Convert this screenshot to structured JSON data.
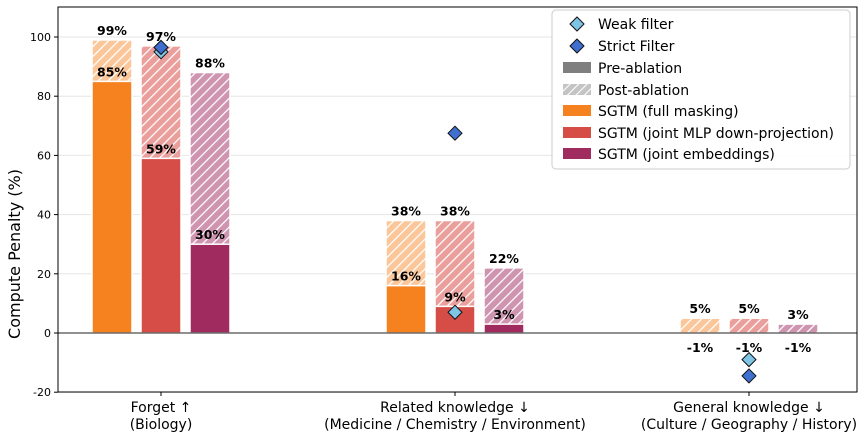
{
  "chart_data": {
    "type": "bar",
    "ylabel": "Compute Penalty (%)",
    "ylim": [
      -20,
      110
    ],
    "yticks": [
      -20,
      0,
      20,
      40,
      60,
      80,
      100
    ],
    "grid": true,
    "legend_position": "top-right",
    "categories": [
      {
        "line1": "Forget ↑",
        "line2": "(Biology)"
      },
      {
        "line1": "Related knowledge ↓",
        "line2": "(Medicine / Chemistry / Environment)"
      },
      {
        "line1": "General knowledge ↓",
        "line2": "(Culture / Geography / History)"
      }
    ],
    "series": [
      {
        "name": "SGTM (full masking)",
        "color": "#f5821f",
        "pre": [
          85,
          16,
          -1
        ],
        "post": [
          99,
          38,
          5
        ],
        "pre_labels": [
          "85%",
          "16%",
          "-1%"
        ],
        "post_labels": [
          "99%",
          "38%",
          "5%"
        ]
      },
      {
        "name": "SGTM (joint MLP down-projection)",
        "color": "#d64d47",
        "pre": [
          59,
          9,
          -1
        ],
        "post": [
          97,
          38,
          5
        ],
        "pre_labels": [
          "59%",
          "9%",
          "-1%"
        ],
        "post_labels": [
          "97%",
          "38%",
          "5%"
        ]
      },
      {
        "name": "SGTM (joint embeddings)",
        "color": "#a02c5f",
        "pre": [
          30,
          3,
          -1
        ],
        "post": [
          88,
          22,
          3
        ],
        "pre_labels": [
          "30%",
          "3%",
          "-1%"
        ],
        "post_labels": [
          "88%",
          "22%",
          "3%"
        ]
      }
    ],
    "markers": [
      {
        "name": "Weak filter",
        "color": "#7ec4e4",
        "values": [
          95,
          7,
          -9
        ]
      },
      {
        "name": "Strict Filter",
        "color": "#3f6fcf",
        "values": [
          96.5,
          67.5,
          -14.5
        ]
      }
    ],
    "legend": {
      "weak": "Weak filter",
      "strict": "Strict Filter",
      "pre": "Pre-ablation",
      "post": "Post-ablation",
      "s1": "SGTM (full masking)",
      "s2": "SGTM (joint MLP down-projection)",
      "s3": "SGTM (joint embeddings)"
    }
  }
}
